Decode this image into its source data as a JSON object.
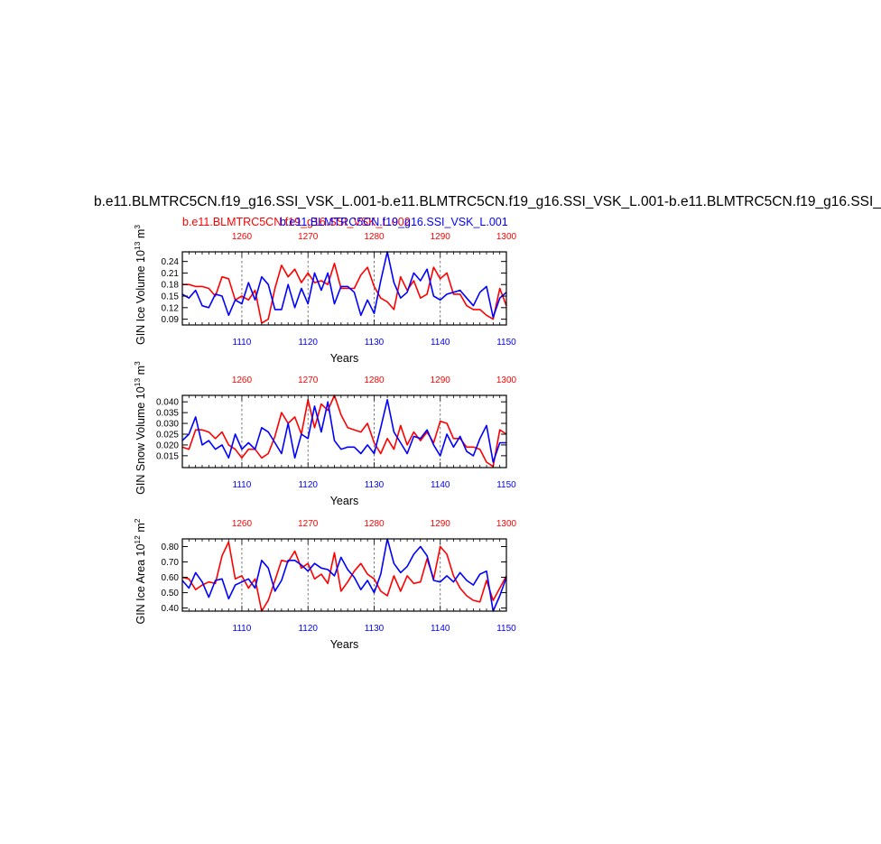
{
  "main_title": "b.e11.BLMTRC5CN.f19_g16.SSI_VSK_L.001-b.e11.BLMTRC5CN.f19_g16.SSI_VSK_L.001-b.e11.BLMTRC5CN.f19_g16.SSI_",
  "case_red": "b.e11.BLMTRC5CN.f19_g16.SSI_VSK_L.002",
  "case_blue": "b.e11.BLMTRC5CN.f19_g16.SSI_VSK_L.001",
  "colors": {
    "series_a": "#ff0000",
    "series_b": "#0000ff",
    "axis": "#000000"
  },
  "chart_data": [
    {
      "type": "line",
      "ylabel": "GIN Ice Volume 10",
      "ylabel_exp": "13",
      "ylabel_unit": " m",
      "ylabel_unit_exp": "3",
      "xlabel": "Years",
      "ylim": [
        0.075,
        0.265
      ],
      "yticks": [
        "0.09",
        "0.12",
        "0.15",
        "0.18",
        "0.21",
        "0.24"
      ],
      "yticks_values": [
        0.09,
        0.12,
        0.15,
        0.18,
        0.21,
        0.24
      ],
      "x_bottom": {
        "range": [
          1101,
          1150
        ],
        "ticks": [
          1110,
          1120,
          1130,
          1140,
          1150
        ],
        "labels": [
          "1110",
          "1120",
          "1130",
          "1140",
          "1150"
        ]
      },
      "x_top": {
        "range": [
          1251,
          1300
        ],
        "ticks": [
          1260,
          1270,
          1280,
          1290,
          1300
        ],
        "labels": [
          "1260",
          "1270",
          "1280",
          "1290",
          "1300"
        ]
      },
      "series": [
        {
          "color": "#ff0000",
          "x": [
            1251,
            1252,
            1253,
            1254,
            1255,
            1256,
            1257,
            1258,
            1259,
            1260,
            1261,
            1262,
            1263,
            1264,
            1265,
            1266,
            1267,
            1268,
            1269,
            1270,
            1271,
            1272,
            1273,
            1274,
            1275,
            1276,
            1277,
            1278,
            1279,
            1280,
            1281,
            1282,
            1283,
            1284,
            1285,
            1286,
            1287,
            1288,
            1289,
            1290,
            1291,
            1292,
            1293,
            1294,
            1295,
            1296,
            1297,
            1298,
            1299,
            1300
          ],
          "values": [
            0.18,
            0.18,
            0.175,
            0.175,
            0.17,
            0.15,
            0.2,
            0.195,
            0.14,
            0.15,
            0.14,
            0.165,
            0.08,
            0.09,
            0.17,
            0.23,
            0.2,
            0.22,
            0.185,
            0.21,
            0.185,
            0.19,
            0.18,
            0.235,
            0.17,
            0.17,
            0.17,
            0.205,
            0.225,
            0.175,
            0.145,
            0.135,
            0.115,
            0.2,
            0.165,
            0.19,
            0.145,
            0.155,
            0.225,
            0.195,
            0.21,
            0.155,
            0.155,
            0.125,
            0.115,
            0.115,
            0.1,
            0.09,
            0.17,
            0.125
          ]
        },
        {
          "color": "#0000ff",
          "x": [
            1101,
            1102,
            1103,
            1104,
            1105,
            1106,
            1107,
            1108,
            1109,
            1110,
            1111,
            1112,
            1113,
            1114,
            1115,
            1116,
            1117,
            1118,
            1119,
            1120,
            1121,
            1122,
            1123,
            1124,
            1125,
            1126,
            1127,
            1128,
            1129,
            1130,
            1131,
            1132,
            1133,
            1134,
            1135,
            1136,
            1137,
            1138,
            1139,
            1140,
            1141,
            1142,
            1143,
            1144,
            1145,
            1146,
            1147,
            1148,
            1149,
            1150
          ],
          "values": [
            0.155,
            0.145,
            0.165,
            0.125,
            0.12,
            0.155,
            0.15,
            0.1,
            0.14,
            0.13,
            0.185,
            0.14,
            0.2,
            0.18,
            0.115,
            0.115,
            0.18,
            0.12,
            0.17,
            0.13,
            0.21,
            0.165,
            0.21,
            0.13,
            0.175,
            0.175,
            0.16,
            0.1,
            0.14,
            0.105,
            0.19,
            0.265,
            0.185,
            0.145,
            0.16,
            0.21,
            0.19,
            0.22,
            0.15,
            0.14,
            0.155,
            0.16,
            0.165,
            0.145,
            0.125,
            0.16,
            0.175,
            0.095,
            0.145,
            0.16
          ]
        }
      ]
    },
    {
      "type": "line",
      "ylabel": "GIN Snow Volume 10",
      "ylabel_exp": "13",
      "ylabel_unit": " m",
      "ylabel_unit_exp": "3",
      "xlabel": "Years",
      "ylim": [
        0.0095,
        0.043
      ],
      "yticks": [
        "0.015",
        "0.020",
        "0.025",
        "0.030",
        "0.035",
        "0.040"
      ],
      "yticks_values": [
        0.015,
        0.02,
        0.025,
        0.03,
        0.035,
        0.04
      ],
      "x_bottom": {
        "range": [
          1101,
          1150
        ],
        "ticks": [
          1110,
          1120,
          1130,
          1140,
          1150
        ],
        "labels": [
          "1110",
          "1120",
          "1130",
          "1140",
          "1150"
        ]
      },
      "x_top": {
        "range": [
          1251,
          1300
        ],
        "ticks": [
          1260,
          1270,
          1280,
          1290,
          1300
        ],
        "labels": [
          "1260",
          "1270",
          "1280",
          "1290",
          "1300"
        ]
      },
      "series": [
        {
          "color": "#ff0000",
          "x": [
            1251,
            1252,
            1253,
            1254,
            1255,
            1256,
            1257,
            1258,
            1259,
            1260,
            1261,
            1262,
            1263,
            1264,
            1265,
            1266,
            1267,
            1268,
            1269,
            1270,
            1271,
            1272,
            1273,
            1274,
            1275,
            1276,
            1277,
            1278,
            1279,
            1280,
            1281,
            1282,
            1283,
            1284,
            1285,
            1286,
            1287,
            1288,
            1289,
            1290,
            1291,
            1292,
            1293,
            1294,
            1295,
            1296,
            1297,
            1298,
            1299,
            1300
          ],
          "values": [
            0.019,
            0.018,
            0.027,
            0.027,
            0.026,
            0.023,
            0.026,
            0.02,
            0.018,
            0.014,
            0.018,
            0.018,
            0.014,
            0.016,
            0.024,
            0.035,
            0.03,
            0.033,
            0.025,
            0.041,
            0.028,
            0.039,
            0.036,
            0.043,
            0.034,
            0.028,
            0.027,
            0.026,
            0.03,
            0.021,
            0.016,
            0.023,
            0.018,
            0.029,
            0.02,
            0.026,
            0.022,
            0.026,
            0.021,
            0.031,
            0.03,
            0.023,
            0.023,
            0.019,
            0.019,
            0.018,
            0.012,
            0.01,
            0.027,
            0.025
          ]
        },
        {
          "color": "#0000ff",
          "x": [
            1101,
            1102,
            1103,
            1104,
            1105,
            1106,
            1107,
            1108,
            1109,
            1110,
            1111,
            1112,
            1113,
            1114,
            1115,
            1116,
            1117,
            1118,
            1119,
            1120,
            1121,
            1122,
            1123,
            1124,
            1125,
            1126,
            1127,
            1128,
            1129,
            1130,
            1131,
            1132,
            1133,
            1134,
            1135,
            1136,
            1137,
            1138,
            1139,
            1140,
            1141,
            1142,
            1143,
            1144,
            1145,
            1146,
            1147,
            1148,
            1149,
            1150
          ],
          "values": [
            0.022,
            0.025,
            0.033,
            0.02,
            0.022,
            0.018,
            0.02,
            0.014,
            0.025,
            0.018,
            0.021,
            0.018,
            0.028,
            0.026,
            0.021,
            0.016,
            0.03,
            0.014,
            0.025,
            0.023,
            0.038,
            0.026,
            0.04,
            0.022,
            0.018,
            0.019,
            0.019,
            0.016,
            0.02,
            0.016,
            0.028,
            0.041,
            0.026,
            0.021,
            0.016,
            0.024,
            0.023,
            0.027,
            0.02,
            0.015,
            0.025,
            0.019,
            0.024,
            0.017,
            0.015,
            0.023,
            0.029,
            0.012,
            0.021,
            0.021
          ]
        }
      ]
    },
    {
      "type": "line",
      "ylabel": "GIN Ice Area 10",
      "ylabel_exp": "12",
      "ylabel_unit": " m",
      "ylabel_unit_exp": "2",
      "xlabel": "Years",
      "ylim": [
        0.38,
        0.85
      ],
      "yticks": [
        "0.40",
        "0.50",
        "0.60",
        "0.70",
        "0.80"
      ],
      "yticks_values": [
        0.4,
        0.5,
        0.6,
        0.7,
        0.8
      ],
      "x_bottom": {
        "range": [
          1101,
          1150
        ],
        "ticks": [
          1110,
          1120,
          1130,
          1140,
          1150
        ],
        "labels": [
          "1110",
          "1120",
          "1130",
          "1140",
          "1150"
        ]
      },
      "x_top": {
        "range": [
          1251,
          1300
        ],
        "ticks": [
          1260,
          1270,
          1280,
          1290,
          1300
        ],
        "labels": [
          "1260",
          "1270",
          "1280",
          "1290",
          "1300"
        ]
      },
      "series": [
        {
          "color": "#ff0000",
          "x": [
            1251,
            1252,
            1253,
            1254,
            1255,
            1256,
            1257,
            1258,
            1259,
            1260,
            1261,
            1262,
            1263,
            1264,
            1265,
            1266,
            1267,
            1268,
            1269,
            1270,
            1271,
            1272,
            1273,
            1274,
            1275,
            1276,
            1277,
            1278,
            1279,
            1280,
            1281,
            1282,
            1283,
            1284,
            1285,
            1286,
            1287,
            1288,
            1289,
            1290,
            1291,
            1292,
            1293,
            1294,
            1295,
            1296,
            1297,
            1298,
            1299,
            1300
          ],
          "values": [
            0.6,
            0.59,
            0.52,
            0.55,
            0.57,
            0.56,
            0.74,
            0.83,
            0.59,
            0.61,
            0.53,
            0.59,
            0.38,
            0.45,
            0.58,
            0.71,
            0.7,
            0.77,
            0.66,
            0.69,
            0.59,
            0.62,
            0.56,
            0.76,
            0.51,
            0.57,
            0.64,
            0.69,
            0.62,
            0.59,
            0.51,
            0.48,
            0.61,
            0.51,
            0.61,
            0.56,
            0.57,
            0.72,
            0.59,
            0.8,
            0.75,
            0.61,
            0.53,
            0.48,
            0.45,
            0.44,
            0.58,
            0.45,
            0.53,
            0.61
          ]
        },
        {
          "color": "#0000ff",
          "x": [
            1101,
            1102,
            1103,
            1104,
            1105,
            1106,
            1107,
            1108,
            1109,
            1110,
            1111,
            1112,
            1113,
            1114,
            1115,
            1116,
            1117,
            1118,
            1119,
            1120,
            1121,
            1122,
            1123,
            1124,
            1125,
            1126,
            1127,
            1128,
            1129,
            1130,
            1131,
            1132,
            1133,
            1134,
            1135,
            1136,
            1137,
            1138,
            1139,
            1140,
            1141,
            1142,
            1143,
            1144,
            1145,
            1146,
            1147,
            1148,
            1149,
            1150
          ],
          "values": [
            0.58,
            0.53,
            0.63,
            0.57,
            0.47,
            0.58,
            0.59,
            0.46,
            0.55,
            0.57,
            0.59,
            0.53,
            0.71,
            0.66,
            0.51,
            0.58,
            0.71,
            0.71,
            0.68,
            0.64,
            0.69,
            0.66,
            0.65,
            0.61,
            0.73,
            0.65,
            0.6,
            0.52,
            0.58,
            0.5,
            0.62,
            0.85,
            0.69,
            0.63,
            0.67,
            0.75,
            0.8,
            0.74,
            0.58,
            0.57,
            0.61,
            0.57,
            0.63,
            0.58,
            0.55,
            0.62,
            0.64,
            0.38,
            0.48,
            0.6
          ]
        }
      ]
    }
  ]
}
